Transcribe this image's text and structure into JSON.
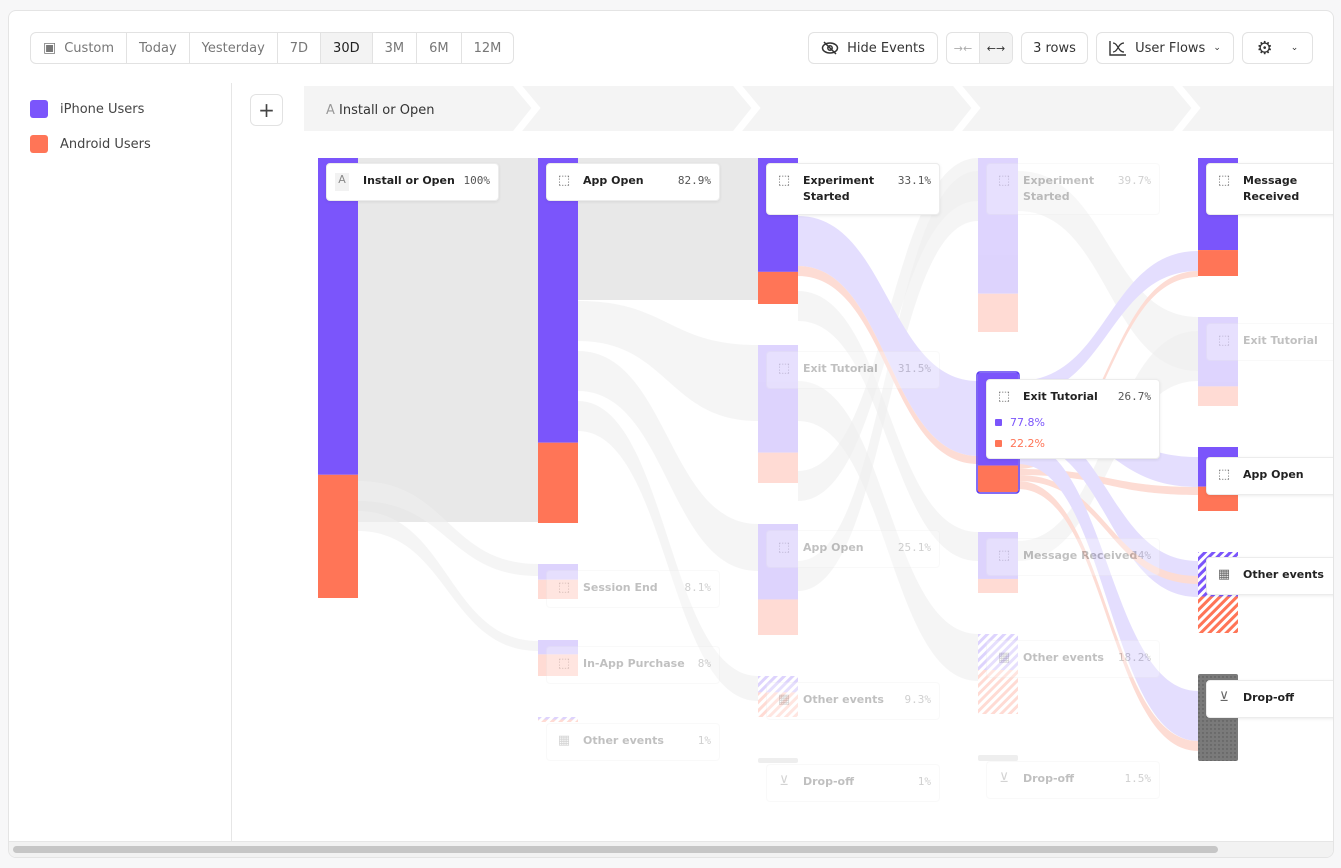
{
  "toolbar": {
    "date_ranges": [
      {
        "label": "Custom",
        "icon": "calendar-icon"
      },
      {
        "label": "Today"
      },
      {
        "label": "Yesterday"
      },
      {
        "label": "7D"
      },
      {
        "label": "30D",
        "selected": true
      },
      {
        "label": "3M"
      },
      {
        "label": "6M"
      },
      {
        "label": "12M"
      }
    ],
    "hide_events": "Hide Events",
    "rows": "3 rows",
    "view": "User Flows",
    "icons": [
      "eye-off-icon",
      "collapse-icon",
      "expand-icon",
      "flows-chart-icon",
      "gear-icon",
      "chevron-down-icon"
    ]
  },
  "legend": [
    {
      "label": "iPhone Users",
      "color": "#7b55fb"
    },
    {
      "label": "Android Users",
      "color": "#ff7557"
    }
  ],
  "header": {
    "step_letter": "A",
    "first_step": "Install or Open",
    "add": "+"
  },
  "colors": {
    "iphone": "#7b55fb",
    "android": "#ff7557",
    "dropoff": "#8a8a8a",
    "gray_flow": "#e8e8e8"
  },
  "columns": [
    {
      "nodes": [
        {
          "label": "Install or Open",
          "pct": "100%",
          "icon": "A",
          "iphone": 0.72,
          "active": true
        }
      ]
    },
    {
      "nodes": [
        {
          "label": "App Open",
          "pct": "82.9%",
          "icon": "cursor",
          "iphone": 0.78,
          "active": true
        },
        {
          "label": "Session End",
          "pct": "8.1%",
          "icon": "cursor",
          "iphone": 0.45
        },
        {
          "label": "In-App Purchase",
          "pct": "8%",
          "icon": "cursor",
          "iphone": 0.4
        },
        {
          "label": "Other events",
          "pct": "1%",
          "icon": "grid",
          "iphone": 0.5,
          "hatched": true
        }
      ]
    },
    {
      "nodes": [
        {
          "label": "Experiment Started",
          "pct": "33.1%",
          "icon": "cursor",
          "iphone": 0.78,
          "active": true
        },
        {
          "label": "Exit Tutorial",
          "pct": "31.5%",
          "icon": "cursor",
          "iphone": 0.78
        },
        {
          "label": "App Open",
          "pct": "25.1%",
          "icon": "cursor",
          "iphone": 0.68
        },
        {
          "label": "Other events",
          "pct": "9.3%",
          "icon": "grid",
          "iphone": 0.4,
          "hatched": true
        },
        {
          "label": "Drop-off",
          "pct": "1%",
          "icon": "drop",
          "dropoff": true
        }
      ]
    },
    {
      "nodes": [
        {
          "label": "Experiment Started",
          "pct": "39.7%",
          "icon": "cursor",
          "iphone": 0.78
        },
        {
          "label": "Exit Tutorial",
          "pct": "26.7%",
          "icon": "cursor",
          "iphone": 0.778,
          "active": true,
          "selected": true,
          "breakdown": [
            "77.8%",
            "22.2%"
          ]
        },
        {
          "label": "Message Received",
          "pct": "14%",
          "icon": "cursor",
          "iphone": 0.77
        },
        {
          "label": "Other events",
          "pct": "18.2%",
          "icon": "grid",
          "iphone": 0.45,
          "hatched": true
        },
        {
          "label": "Drop-off",
          "pct": "1.5%",
          "icon": "drop",
          "dropoff": true
        }
      ]
    },
    {
      "nodes": [
        {
          "label": "Message Received",
          "pct": "",
          "icon": "cursor",
          "iphone": 0.78,
          "active": true
        },
        {
          "label": "Exit Tutorial",
          "pct": "",
          "icon": "cursor",
          "iphone": 0.78
        },
        {
          "label": "App Open",
          "pct": "",
          "icon": "cursor",
          "iphone": 0.62,
          "active": true
        },
        {
          "label": "Other events",
          "pct": "",
          "icon": "grid",
          "iphone": 0.55,
          "hatched": true,
          "active": true
        },
        {
          "label": "Drop-off",
          "pct": "",
          "icon": "drop",
          "dropoff": true,
          "active": true
        }
      ]
    }
  ]
}
